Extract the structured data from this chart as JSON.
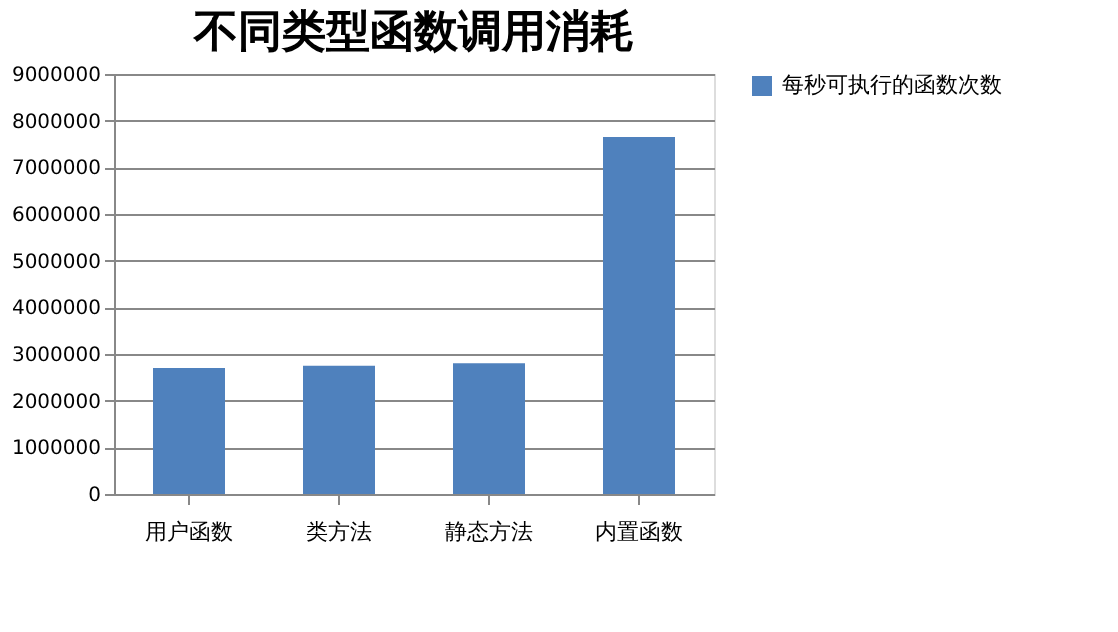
{
  "chart_data": {
    "type": "bar",
    "title": "不同类型函数调用消耗",
    "categories": [
      "用户函数",
      "类方法",
      "静态方法",
      "内置函数"
    ],
    "series": [
      {
        "name": "每秒可执行的函数次数",
        "color": "#4f81bd",
        "values": [
          2700000,
          2750000,
          2800000,
          7650000
        ]
      }
    ],
    "ylim": [
      0,
      9000000
    ],
    "yticks": [
      0,
      1000000,
      2000000,
      3000000,
      4000000,
      5000000,
      6000000,
      7000000,
      8000000,
      9000000
    ],
    "grid": "y",
    "legend": "right"
  }
}
